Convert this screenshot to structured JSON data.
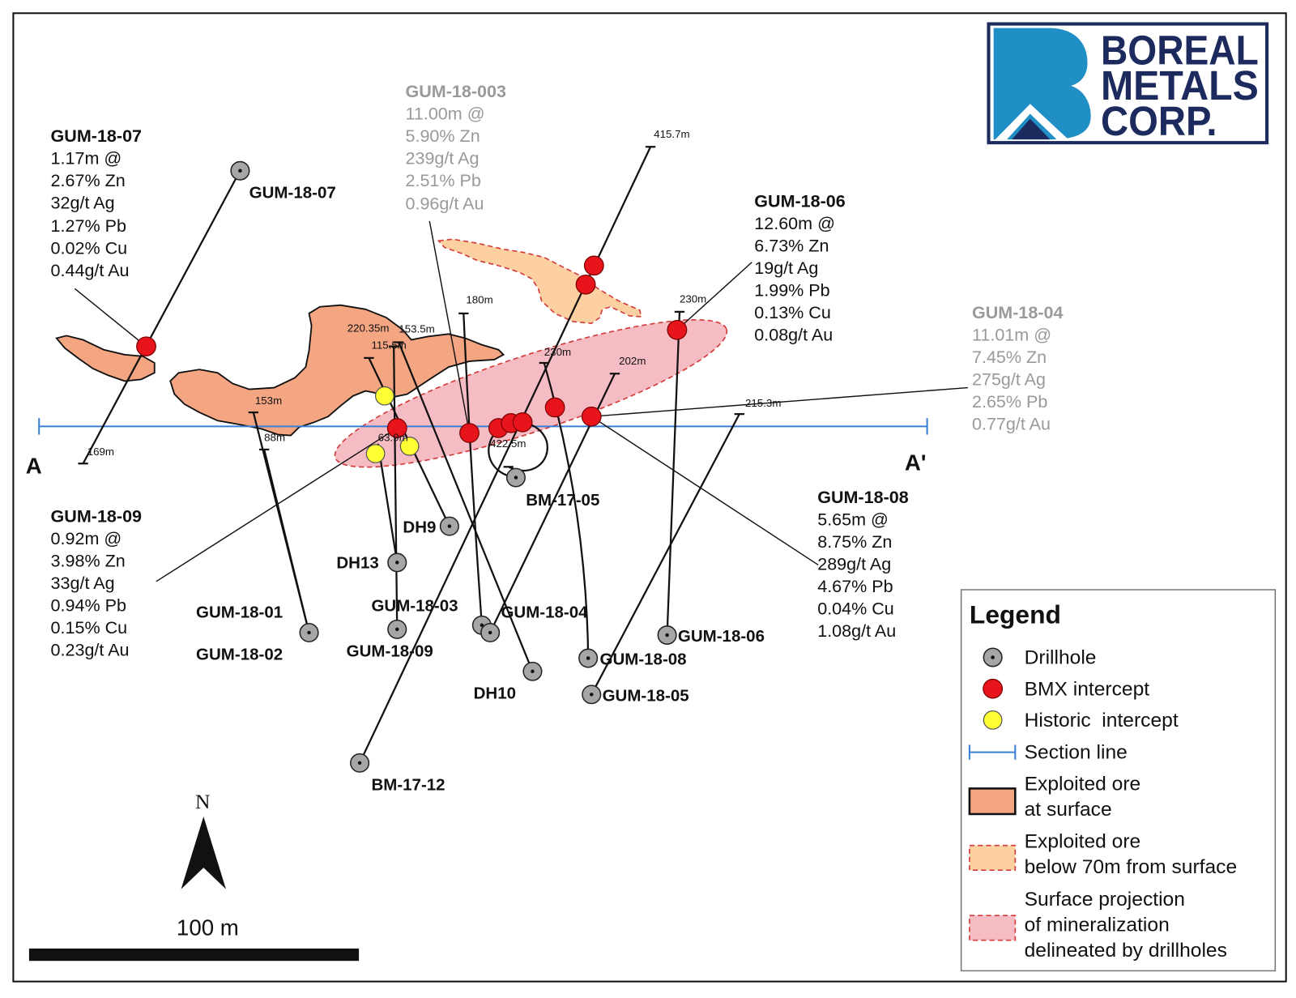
{
  "logo": {
    "line1": "BOREAL",
    "line2": "METALS",
    "line3": "CORP."
  },
  "section_line": {
    "start_label": "A",
    "end_label": "A'"
  },
  "collar_labels": [
    "GUM-18-07",
    "BM-17-05",
    "DH9",
    "DH13",
    "GUM-18-03",
    "GUM-18-04",
    "GUM-18-01",
    "GUM-18-02",
    "GUM-18-09",
    "GUM-18-06",
    "GUM-18-08",
    "DH10",
    "GUM-18-05",
    "BM-17-12"
  ],
  "depth_labels": [
    "415.7m",
    "180m",
    "230m",
    "220.35m",
    "153.5m",
    "115.5m",
    "230m",
    "202m",
    "153m",
    "88m",
    "63.9m",
    "422.5m",
    "215.3m",
    "169m"
  ],
  "callouts": {
    "gum_18_07": {
      "title": "GUM-18-07",
      "lines": [
        "1.17m @",
        "2.67% Zn",
        "32g/t Ag",
        "1.27% Pb",
        "0.02% Cu",
        "0.44g/t Au"
      ]
    },
    "gum_18_003": {
      "title": "GUM-18-003",
      "lines": [
        "11.00m @",
        "5.90% Zn",
        "239g/t Ag",
        "2.51% Pb",
        "0.96g/t Au"
      ]
    },
    "gum_18_06": {
      "title": "GUM-18-06",
      "lines": [
        "12.60m @",
        "6.73% Zn",
        "19g/t Ag",
        "1.99% Pb",
        "0.13% Cu",
        "0.08g/t Au"
      ]
    },
    "gum_18_04": {
      "title": "GUM-18-04",
      "lines": [
        "11.01m @",
        "7.45% Zn",
        "275g/t Ag",
        "2.65% Pb",
        "0.77g/t Au"
      ]
    },
    "gum_18_09": {
      "title": "GUM-18-09",
      "lines": [
        "0.92m @",
        "3.98% Zn",
        "33g/t Ag",
        "0.94% Pb",
        "0.15% Cu",
        "0.23g/t Au"
      ]
    },
    "gum_18_08": {
      "title": "GUM-18-08",
      "lines": [
        "5.65m @",
        "8.75% Zn",
        "289g/t Ag",
        "4.67% Pb",
        "0.04% Cu",
        "1.08g/t Au"
      ]
    }
  },
  "north_arrow": {
    "label": "N"
  },
  "scale_bar": {
    "label": "100 m"
  },
  "legend": {
    "title": "Legend",
    "drillhole": "Drillhole",
    "bmx": "BMX intercept",
    "historic": "Historic  intercept",
    "section": "Section line",
    "surface_ore": [
      "Exploited ore",
      "at surface"
    ],
    "deep_ore": [
      "Exploited ore",
      "below 70m from surface"
    ],
    "projection": [
      "Surface projection",
      "of mineralization",
      "delineated by drillholes"
    ]
  },
  "colors": {
    "logo_navy": "#1c2a5e",
    "logo_blue": "#1f8fc6",
    "section_line": "#3a7fd5",
    "surface_ore": "#f4a582",
    "deep_ore": "#fdd0a2",
    "projection": "#f6bcc4",
    "bmx_intercept": "#e8141c",
    "historic_intercept": "#ffff33",
    "drillhole": "#a6a6a6"
  }
}
